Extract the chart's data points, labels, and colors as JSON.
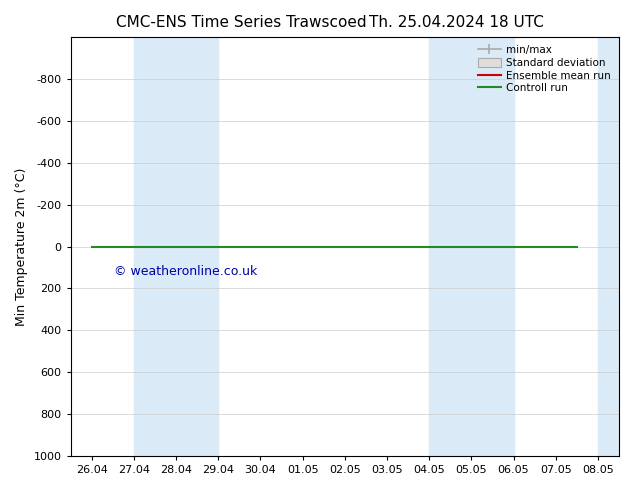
{
  "title": "CMC-ENS Time Series Trawscoed",
  "title2": "Th. 25.04.2024 18 UTC",
  "ylabel": "Min Temperature 2m (°C)",
  "watermark": "© weatheronline.co.uk",
  "ylim_top": -1000,
  "ylim_bottom": 1000,
  "yticks": [
    -800,
    -600,
    -400,
    -200,
    0,
    200,
    400,
    600,
    800,
    1000
  ],
  "x_tick_labels": [
    "26.04",
    "27.04",
    "28.04",
    "29.04",
    "30.04",
    "01.05",
    "02.05",
    "03.05",
    "04.05",
    "05.05",
    "06.05",
    "07.05",
    "08.05"
  ],
  "x_tick_positions": [
    0,
    1,
    2,
    3,
    4,
    5,
    6,
    7,
    8,
    9,
    10,
    11,
    12
  ],
  "shaded_bands": [
    [
      1,
      2
    ],
    [
      2,
      3
    ],
    [
      8,
      9
    ],
    [
      9,
      10
    ],
    [
      12,
      12.5
    ]
  ],
  "shaded_color": "#daeaf7",
  "green_line_y": 0,
  "red_line_y": 0,
  "green_line_xstart": 0,
  "green_line_xend": 11.5,
  "red_line_xstart": 0,
  "red_line_xend": 11.5,
  "control_line_color": "#228B22",
  "ensemble_mean_color": "#cc0000",
  "minmax_color": "#aaaaaa",
  "std_dev_color": "#cccccc",
  "background_color": "#ffffff",
  "legend_labels": [
    "min/max",
    "Standard deviation",
    "Ensemble mean run",
    "Controll run"
  ],
  "title_fontsize": 11,
  "tick_label_fontsize": 8,
  "ylabel_fontsize": 9,
  "watermark_color": "#0000aa",
  "watermark_fontsize": 9,
  "xlim_left": -0.5,
  "xlim_right": 12.5
}
